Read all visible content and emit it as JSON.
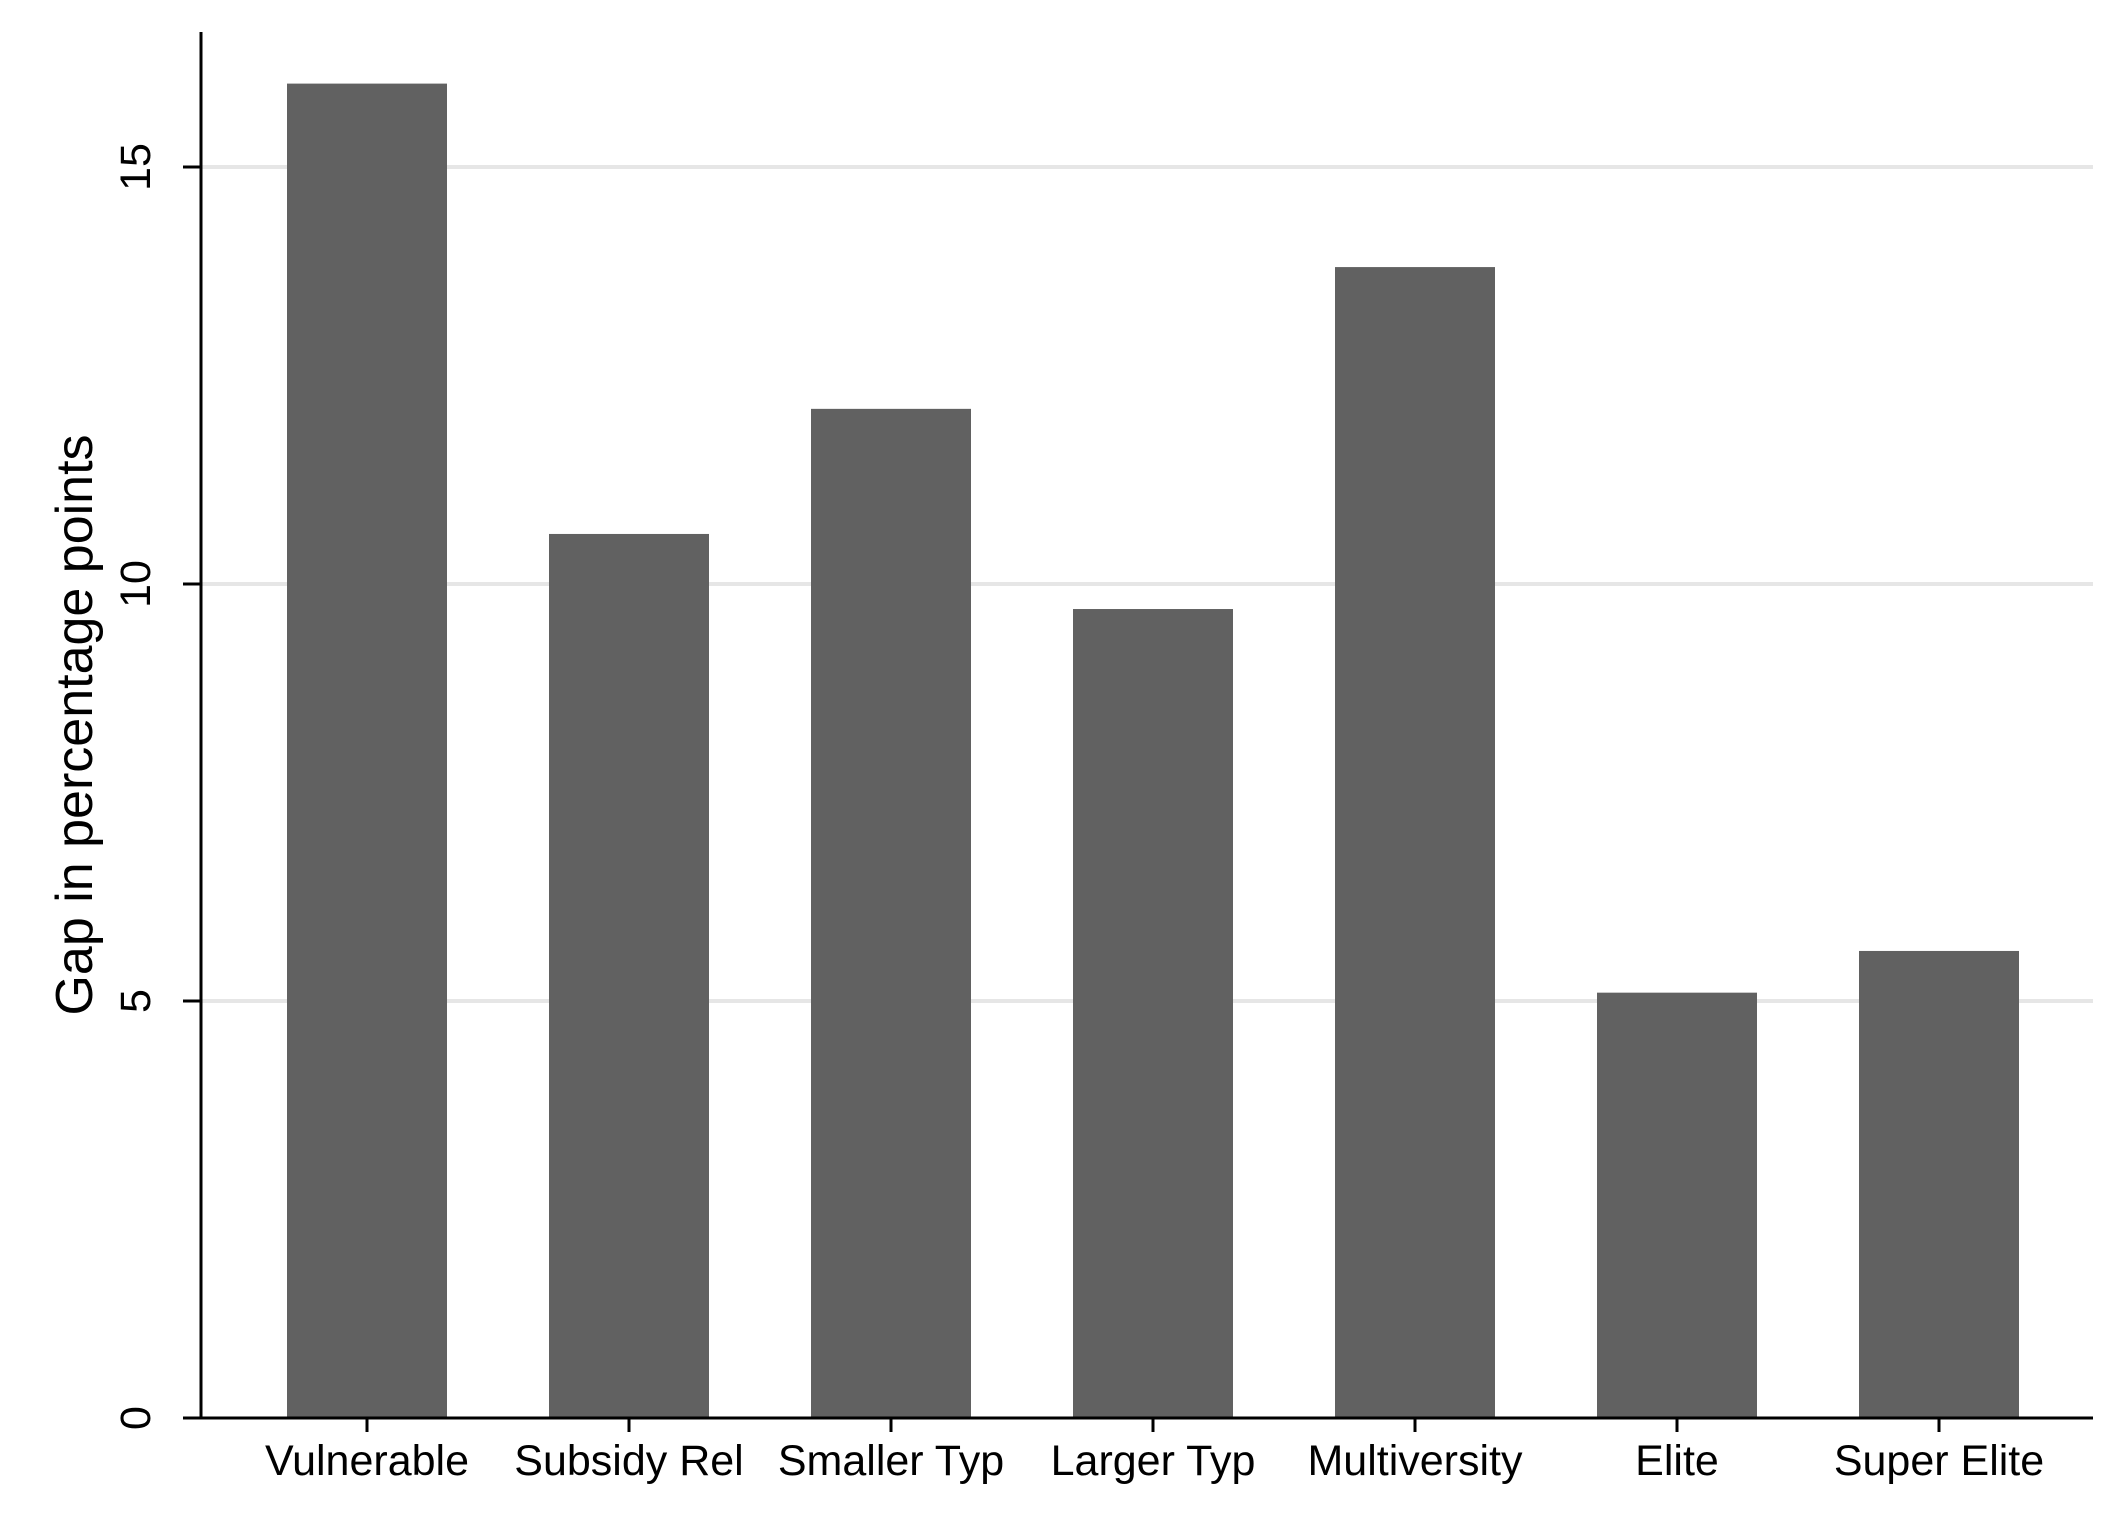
{
  "chart_data": {
    "type": "bar",
    "title": "",
    "xlabel": "",
    "ylabel": "Gap in percentage points",
    "categories": [
      "Vulnerable",
      "Subsidy Rel",
      "Smaller Typ",
      "Larger Typ",
      "Multiversity",
      "Elite",
      "Super Elite"
    ],
    "values": [
      16.0,
      10.6,
      12.1,
      9.7,
      13.8,
      5.1,
      5.6
    ],
    "ylim": [
      0,
      16.5
    ],
    "yticks": [
      0,
      5,
      10,
      15
    ],
    "ytick_labels": [
      "0",
      "5",
      "10",
      "15"
    ],
    "grid": true,
    "legend": "none",
    "colors": {
      "bar": "#616161",
      "grid": "#e6e6e6",
      "axis": "#000000",
      "background": "#ffffff"
    }
  }
}
